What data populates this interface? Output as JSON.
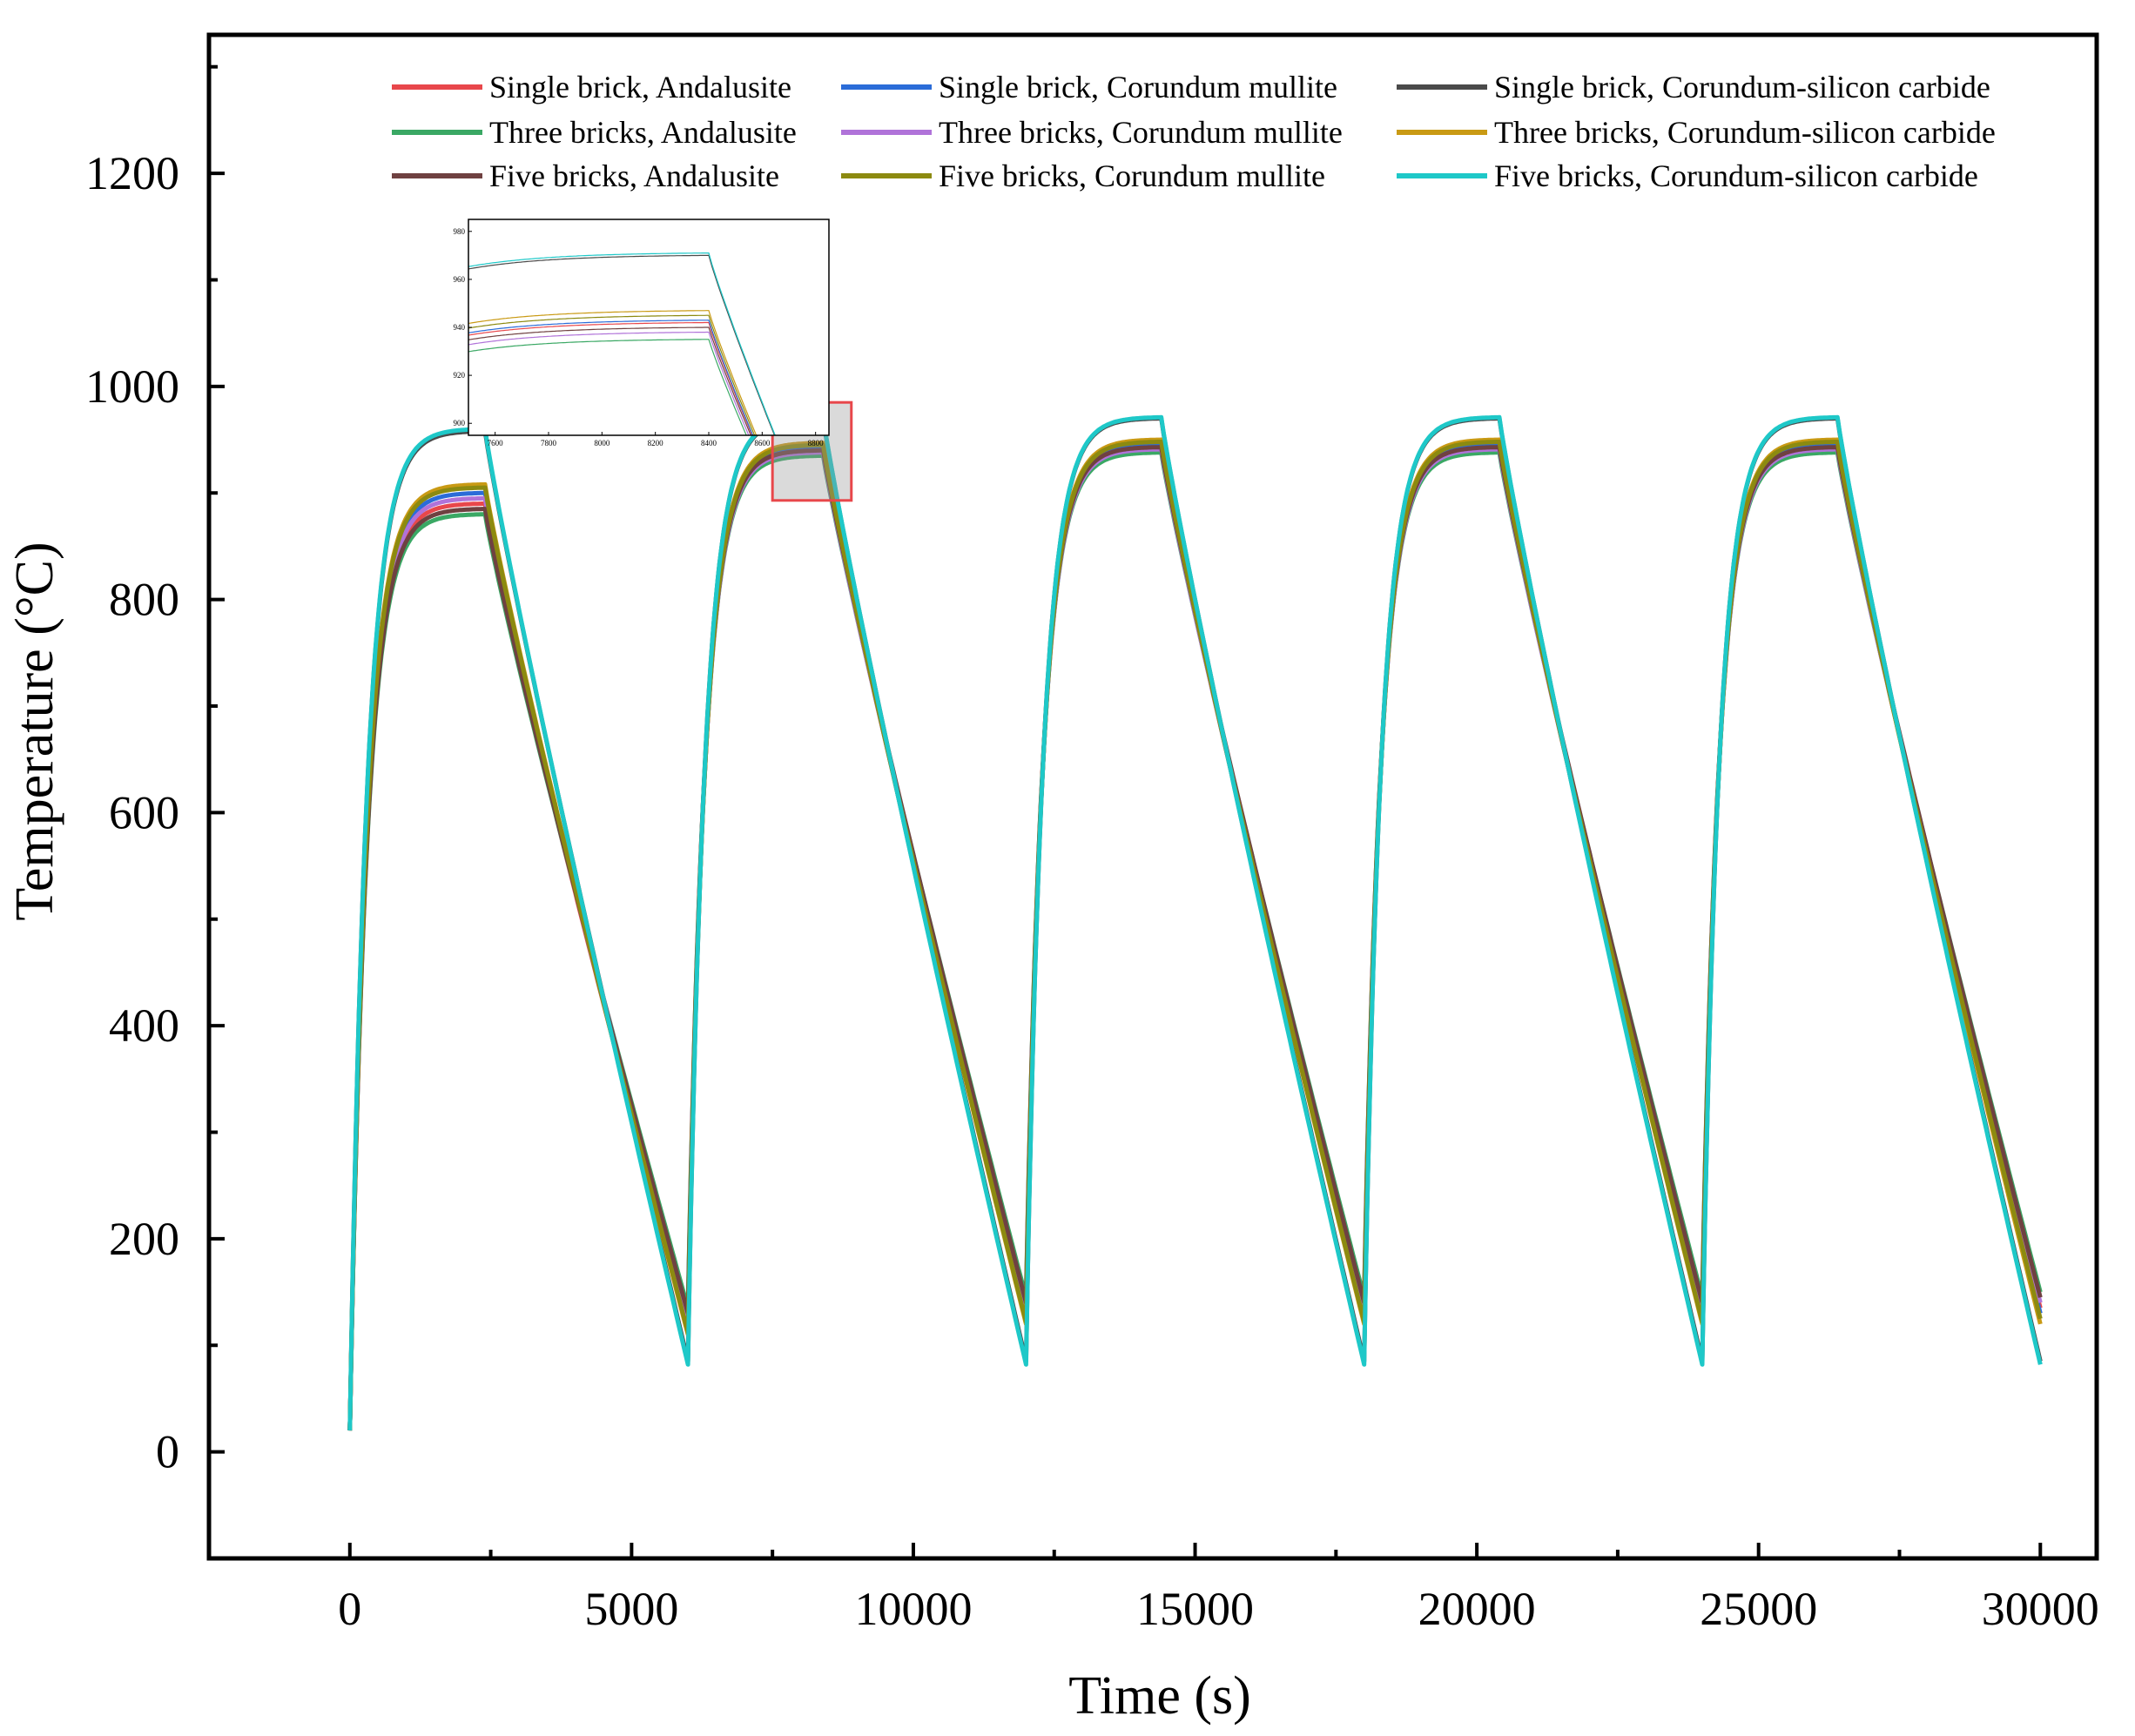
{
  "chart_data": {
    "type": "line",
    "title": "",
    "xlabel": "Time (s)",
    "ylabel": "Temperature (°C)",
    "xlim": [
      -2500,
      31000
    ],
    "ylim": [
      -100,
      1330
    ],
    "xticks": [
      0,
      5000,
      10000,
      15000,
      20000,
      25000,
      30000
    ],
    "yticks": [
      0,
      200,
      400,
      600,
      800,
      1000,
      1200
    ],
    "grid": false,
    "legend_position": "top",
    "cycle": {
      "period_s": 6000,
      "heating_s": 2400,
      "cycles": 5
    },
    "series": [
      {
        "name": "Single brick, Andalusite",
        "color": "#e8474b",
        "points": [
          [
            0,
            20
          ],
          [
            2400,
            890
          ],
          [
            6000,
            120
          ],
          [
            8400,
            942
          ],
          [
            12000,
            130
          ],
          [
            14400,
            945
          ],
          [
            18000,
            130
          ],
          [
            20400,
            945
          ],
          [
            24000,
            130
          ],
          [
            26400,
            945
          ],
          [
            30000,
            135
          ]
        ]
      },
      {
        "name": "Single brick, Corundum mullite",
        "color": "#2b6cd8",
        "points": [
          [
            0,
            20
          ],
          [
            2400,
            900
          ],
          [
            6000,
            115
          ],
          [
            8400,
            943
          ],
          [
            12000,
            125
          ],
          [
            14400,
            946
          ],
          [
            18000,
            125
          ],
          [
            20400,
            946
          ],
          [
            24000,
            125
          ],
          [
            26400,
            946
          ],
          [
            30000,
            130
          ]
        ]
      },
      {
        "name": "Single brick, Corundum-silicon carbide",
        "color": "#4a4a4a",
        "points": [
          [
            0,
            20
          ],
          [
            2400,
            958
          ],
          [
            6000,
            85
          ],
          [
            8400,
            970
          ],
          [
            12000,
            85
          ],
          [
            14400,
            970
          ],
          [
            18000,
            85
          ],
          [
            20400,
            970
          ],
          [
            24000,
            85
          ],
          [
            26400,
            970
          ],
          [
            30000,
            85
          ]
        ]
      },
      {
        "name": "Three bricks, Andalusite",
        "color": "#3aa864",
        "points": [
          [
            0,
            20
          ],
          [
            2400,
            880
          ],
          [
            6000,
            135
          ],
          [
            8400,
            935
          ],
          [
            12000,
            145
          ],
          [
            14400,
            938
          ],
          [
            18000,
            145
          ],
          [
            20400,
            938
          ],
          [
            24000,
            145
          ],
          [
            26400,
            938
          ],
          [
            30000,
            150
          ]
        ]
      },
      {
        "name": "Three bricks, Corundum mullite",
        "color": "#b073d9",
        "points": [
          [
            0,
            20
          ],
          [
            2400,
            895
          ],
          [
            6000,
            125
          ],
          [
            8400,
            938
          ],
          [
            12000,
            135
          ],
          [
            14400,
            941
          ],
          [
            18000,
            135
          ],
          [
            20400,
            941
          ],
          [
            24000,
            135
          ],
          [
            26400,
            941
          ],
          [
            30000,
            140
          ]
        ]
      },
      {
        "name": "Three bricks, Corundum-silicon carbide",
        "color": "#c99a14",
        "points": [
          [
            0,
            20
          ],
          [
            2400,
            908
          ],
          [
            6000,
            110
          ],
          [
            8400,
            947
          ],
          [
            12000,
            120
          ],
          [
            14400,
            950
          ],
          [
            18000,
            120
          ],
          [
            20400,
            950
          ],
          [
            24000,
            120
          ],
          [
            26400,
            950
          ],
          [
            30000,
            120
          ]
        ]
      },
      {
        "name": "Five bricks, Andalusite",
        "color": "#6f4141",
        "points": [
          [
            0,
            20
          ],
          [
            2400,
            885
          ],
          [
            6000,
            130
          ],
          [
            8400,
            940
          ],
          [
            12000,
            140
          ],
          [
            14400,
            943
          ],
          [
            18000,
            140
          ],
          [
            20400,
            943
          ],
          [
            24000,
            140
          ],
          [
            26400,
            943
          ],
          [
            30000,
            145
          ]
        ]
      },
      {
        "name": "Five bricks, Corundum mullite",
        "color": "#8c8a10",
        "points": [
          [
            0,
            20
          ],
          [
            2400,
            905
          ],
          [
            6000,
            112
          ],
          [
            8400,
            945
          ],
          [
            12000,
            122
          ],
          [
            14400,
            948
          ],
          [
            18000,
            122
          ],
          [
            20400,
            948
          ],
          [
            24000,
            122
          ],
          [
            26400,
            948
          ],
          [
            30000,
            125
          ]
        ]
      },
      {
        "name": "Five bricks, Corundum-silicon carbide",
        "color": "#1ec8c8",
        "points": [
          [
            0,
            20
          ],
          [
            2400,
            960
          ],
          [
            6000,
            82
          ],
          [
            8400,
            971
          ],
          [
            12000,
            82
          ],
          [
            14400,
            971
          ],
          [
            18000,
            82
          ],
          [
            20400,
            971
          ],
          [
            24000,
            82
          ],
          [
            26400,
            971
          ],
          [
            30000,
            82
          ]
        ]
      }
    ],
    "zoom_region": {
      "x": [
        7500,
        8900
      ],
      "y": [
        893,
        985
      ]
    },
    "inset": {
      "xlim": [
        7500,
        8850
      ],
      "ylim": [
        895,
        985
      ],
      "xticks": [
        7600,
        7800,
        8000,
        8200,
        8400,
        8600,
        8800
      ],
      "yticks": [
        900,
        920,
        940,
        960,
        980
      ]
    }
  }
}
